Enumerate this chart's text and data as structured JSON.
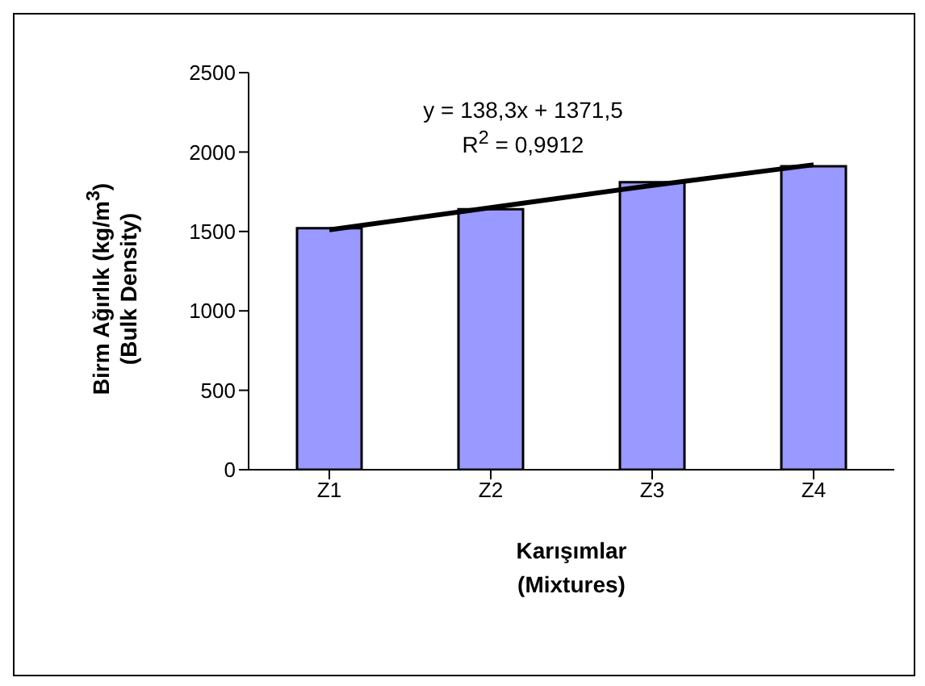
{
  "chart_data": {
    "type": "bar",
    "xlabel": "Karışımlar\n(Mixtures)",
    "ylabel": "Birm Ağırlık (kg/m$^{3}$)\n(Bulk Density)",
    "categories": [
      "Z1",
      "Z2",
      "Z3",
      "Z4"
    ],
    "series": [
      {
        "color": "#9999ff",
        "values": [
          1520,
          1640,
          1810,
          1910
        ]
      },
      {
        "type": "line",
        "color": "#000000",
        "values": [
          1510,
          1650,
          1790,
          1920
        ]
      }
    ],
    "ylim": [
      0,
      2500
    ],
    "yticks": [
      0,
      500,
      1000,
      1500,
      2000,
      2500
    ],
    "grid": false,
    "legend": false,
    "marker": "none",
    "annotations": [
      "y = 138,3x + 1371,5",
      "R$^{2}$ = 0,9912"
    ]
  }
}
